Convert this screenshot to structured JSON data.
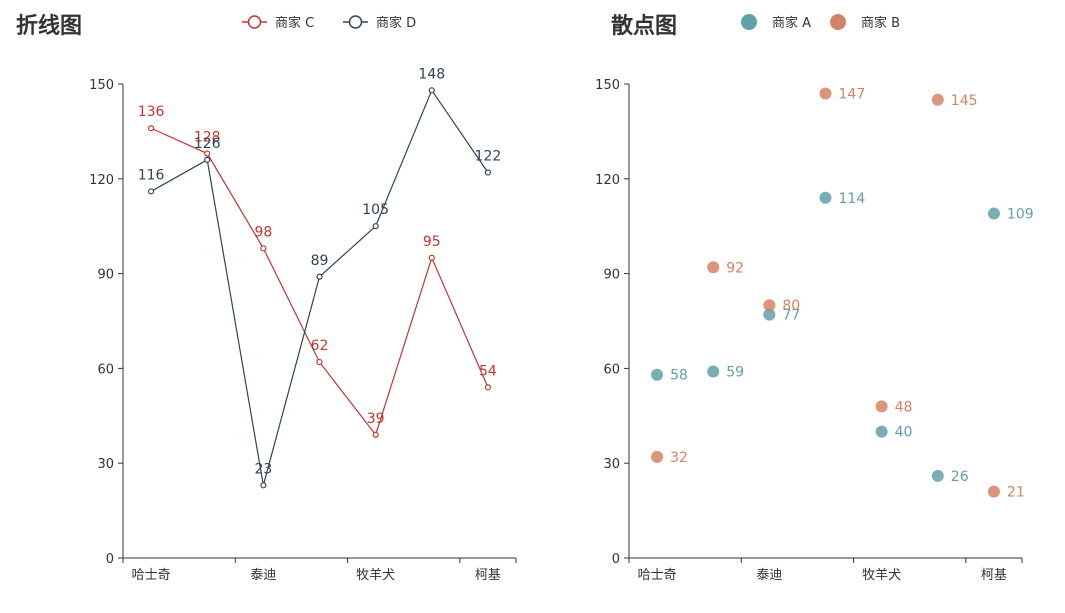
{
  "chart_data": [
    {
      "type": "line",
      "title": "折线图",
      "categories": [
        "哈士奇",
        "",
        "泰迪",
        "",
        "牧羊犬",
        "",
        "柯基"
      ],
      "tick_labels": [
        "哈士奇",
        "泰迪",
        "牧羊犬",
        "柯基"
      ],
      "ylim": [
        0,
        150
      ],
      "yticks": [
        0,
        30,
        60,
        90,
        120,
        150
      ],
      "legend": "top",
      "grid": false,
      "series": [
        {
          "name": "商家 C",
          "color": "#c23531",
          "values": [
            136,
            128,
            98,
            62,
            39,
            95,
            54
          ]
        },
        {
          "name": "商家 D",
          "color": "#2f4554",
          "values": [
            116,
            126,
            23,
            89,
            105,
            148,
            122
          ]
        }
      ]
    },
    {
      "type": "scatter",
      "title": "散点图",
      "categories": [
        "哈士奇",
        "",
        "泰迪",
        "",
        "牧羊犬",
        "",
        "柯基"
      ],
      "tick_labels": [
        "哈士奇",
        "泰迪",
        "牧羊犬",
        "柯基"
      ],
      "ylim": [
        0,
        150
      ],
      "yticks": [
        0,
        30,
        60,
        90,
        120,
        150
      ],
      "legend": "top",
      "grid": false,
      "series": [
        {
          "name": "商家 A",
          "color": "#61a0a8",
          "values": [
            58,
            59,
            77,
            114,
            40,
            26,
            109
          ]
        },
        {
          "name": "商家 B",
          "color": "#d48265",
          "values": [
            32,
            92,
            80,
            147,
            48,
            145,
            21
          ]
        }
      ]
    }
  ]
}
